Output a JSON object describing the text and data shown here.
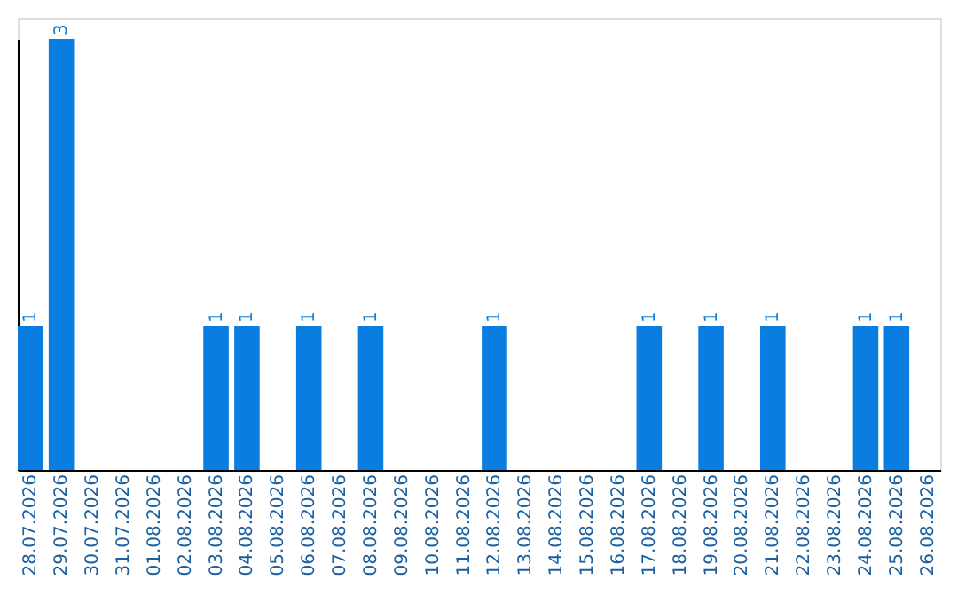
{
  "chart_data": {
    "type": "bar",
    "categories": [
      "28.07.2026",
      "29.07.2026",
      "30.07.2026",
      "31.07.2026",
      "01.08.2026",
      "02.08.2026",
      "03.08.2026",
      "04.08.2026",
      "05.08.2026",
      "06.08.2026",
      "07.08.2026",
      "08.08.2026",
      "09.08.2026",
      "10.08.2026",
      "11.08.2026",
      "12.08.2026",
      "13.08.2026",
      "14.08.2026",
      "15.08.2026",
      "16.08.2026",
      "17.08.2026",
      "18.08.2026",
      "19.08.2026",
      "20.08.2026",
      "21.08.2026",
      "22.08.2026",
      "23.08.2026",
      "24.08.2026",
      "25.08.2026",
      "26.08.2026"
    ],
    "values": [
      1,
      3,
      0,
      0,
      0,
      0,
      1,
      1,
      0,
      1,
      0,
      1,
      0,
      0,
      0,
      1,
      0,
      0,
      0,
      0,
      1,
      0,
      1,
      0,
      1,
      0,
      0,
      1,
      1,
      0
    ],
    "value_labels": [
      "1",
      "3",
      null,
      null,
      null,
      null,
      "1",
      "1",
      null,
      "1",
      null,
      "1",
      null,
      null,
      null,
      "1",
      null,
      null,
      null,
      null,
      "1",
      null,
      "1",
      null,
      "1",
      null,
      null,
      "1",
      "1",
      null
    ],
    "color": "#0a7de0",
    "grid": false,
    "tick_labels": "x"
  }
}
